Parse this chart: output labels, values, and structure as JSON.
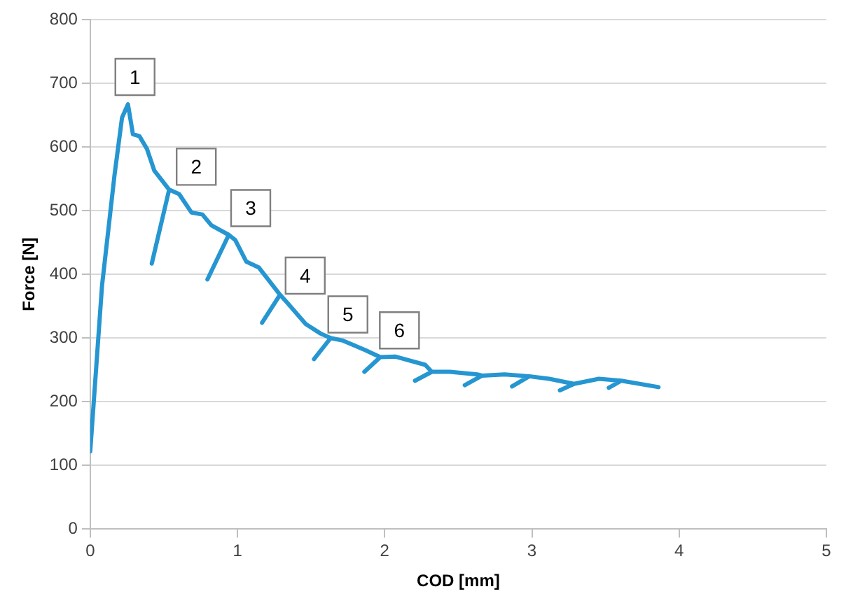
{
  "chart_data": {
    "type": "line",
    "xlabel": "COD [mm]",
    "ylabel": "Force [N]",
    "xlim": [
      0,
      5
    ],
    "xticks": [
      0,
      1,
      2,
      3,
      4,
      5
    ],
    "ylim": [
      0,
      800
    ],
    "yticks": [
      0,
      100,
      200,
      300,
      400,
      500,
      600,
      700,
      800
    ],
    "grid": "y",
    "legend": false,
    "marker": "none",
    "line_style": "solid",
    "series": [
      {
        "color": "#2596d1",
        "x": [
          0,
          0.08,
          0.165,
          0.216,
          0.256,
          0.29,
          0.334,
          0.385,
          0.435,
          0.536,
          0.418,
          0.536,
          0.604,
          0.688,
          0.762,
          0.823,
          0.941,
          0.796,
          0.941,
          0.985,
          1.06,
          1.144,
          1.289,
          1.167,
          1.289,
          1.336,
          1.464,
          1.565,
          1.633,
          1.52,
          1.633,
          1.717,
          1.868,
          1.97,
          1.862,
          1.97,
          2.07,
          2.275,
          2.32,
          2.206,
          2.32,
          2.443,
          2.628,
          2.662,
          2.544,
          2.662,
          2.814,
          2.982,
          2.865,
          2.982,
          3.117,
          3.286,
          3.19,
          3.286,
          3.455,
          3.607,
          3.522,
          3.607,
          3.86
        ],
        "values": [
          122,
          382,
          556,
          646,
          667,
          620,
          617,
          597,
          563,
          533,
          417,
          533,
          526,
          497,
          494,
          477,
          462,
          392,
          462,
          454,
          420,
          411,
          368,
          324,
          368,
          356,
          322,
          307,
          300,
          267,
          300,
          296,
          281,
          270,
          247,
          270,
          271,
          258,
          247,
          233,
          247,
          247,
          243,
          241,
          226,
          241,
          243,
          240,
          224,
          240,
          236,
          228,
          218,
          228,
          236,
          233,
          222,
          233,
          223
        ]
      }
    ],
    "annotations": [
      {
        "text": "1",
        "x": 0.304,
        "y": 710
      },
      {
        "text": "2",
        "x": 0.72,
        "y": 569
      },
      {
        "text": "3",
        "x": 1.09,
        "y": 504
      },
      {
        "text": "4",
        "x": 1.46,
        "y": 398
      },
      {
        "text": "5",
        "x": 1.75,
        "y": 337
      },
      {
        "text": "6",
        "x": 2.1,
        "y": 312
      }
    ]
  }
}
